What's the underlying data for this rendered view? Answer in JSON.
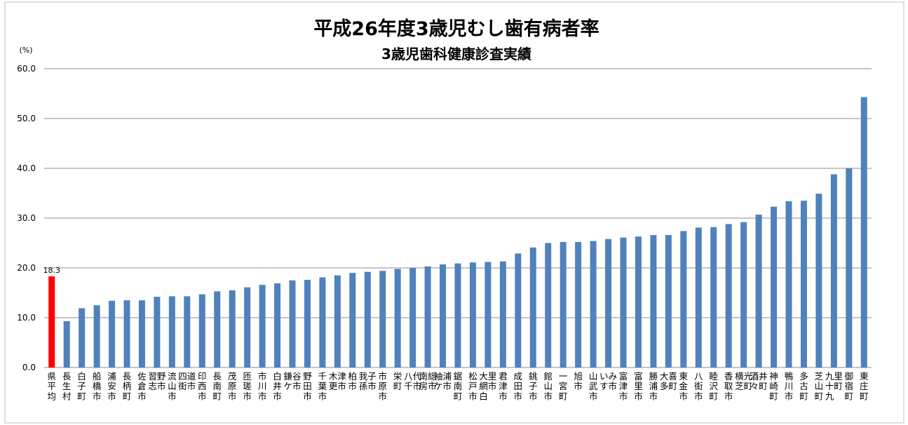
{
  "chart_data": {
    "type": "bar",
    "title": "平成26年度3歳児むし歯有病者率",
    "subtitle": "3歳児歯科健康診査実績",
    "unit_label": "(%)",
    "ylim": [
      0,
      60
    ],
    "yticks": [
      "0.0",
      "10.0",
      "20.0",
      "30.0",
      "40.0",
      "50.0",
      "60.0"
    ],
    "grid": true,
    "legend": "none",
    "highlight_color": "#ff0000",
    "bar_color": "#4f81bd",
    "highlight_index": 0,
    "data_labels": [
      {
        "index": 0,
        "text": "18.3"
      }
    ],
    "categories": [
      "県平均",
      "長生村",
      "白子町",
      "船橋市",
      "浦安市",
      "長柄町",
      "佐倉市",
      "習志野市",
      "流山市",
      "四街道市",
      "印西市",
      "長南町",
      "茂原市",
      "匝瑳市",
      "市川市",
      "白井市",
      "鎌ケ谷市",
      "野田市",
      "千葉市",
      "木更津市",
      "柏市",
      "我孫子市",
      "市原市",
      "栄町",
      "八千代市",
      "南房総市",
      "袖ケ浦市",
      "鋸南町",
      "松戸市",
      "大網白里市",
      "君津市",
      "成田市",
      "銚子市",
      "館山市",
      "一宮町",
      "旭市",
      "山武市",
      "いすみ市",
      "富津市",
      "富里市",
      "勝浦市",
      "大多喜町",
      "東金市",
      "八街市",
      "睦沢町",
      "香取市",
      "横芝光町",
      "酒々井町",
      "神崎町",
      "鴨川市",
      "多古町",
      "芝山町",
      "九十九里町",
      "御宿町",
      "東庄町"
    ],
    "values": [
      18.3,
      9.3,
      11.9,
      12.5,
      13.4,
      13.5,
      13.5,
      14.2,
      14.3,
      14.3,
      14.7,
      15.3,
      15.5,
      16.1,
      16.6,
      16.9,
      17.5,
      17.6,
      18.1,
      18.5,
      19.0,
      19.2,
      19.4,
      19.8,
      20.0,
      20.3,
      20.7,
      20.9,
      21.1,
      21.2,
      21.3,
      22.9,
      24.1,
      25.0,
      25.2,
      25.2,
      25.4,
      25.8,
      26.1,
      26.3,
      26.6,
      26.6,
      27.4,
      28.1,
      28.2,
      28.8,
      29.2,
      30.7,
      32.3,
      33.4,
      33.5,
      34.9,
      38.8,
      40.0,
      54.3
    ]
  }
}
